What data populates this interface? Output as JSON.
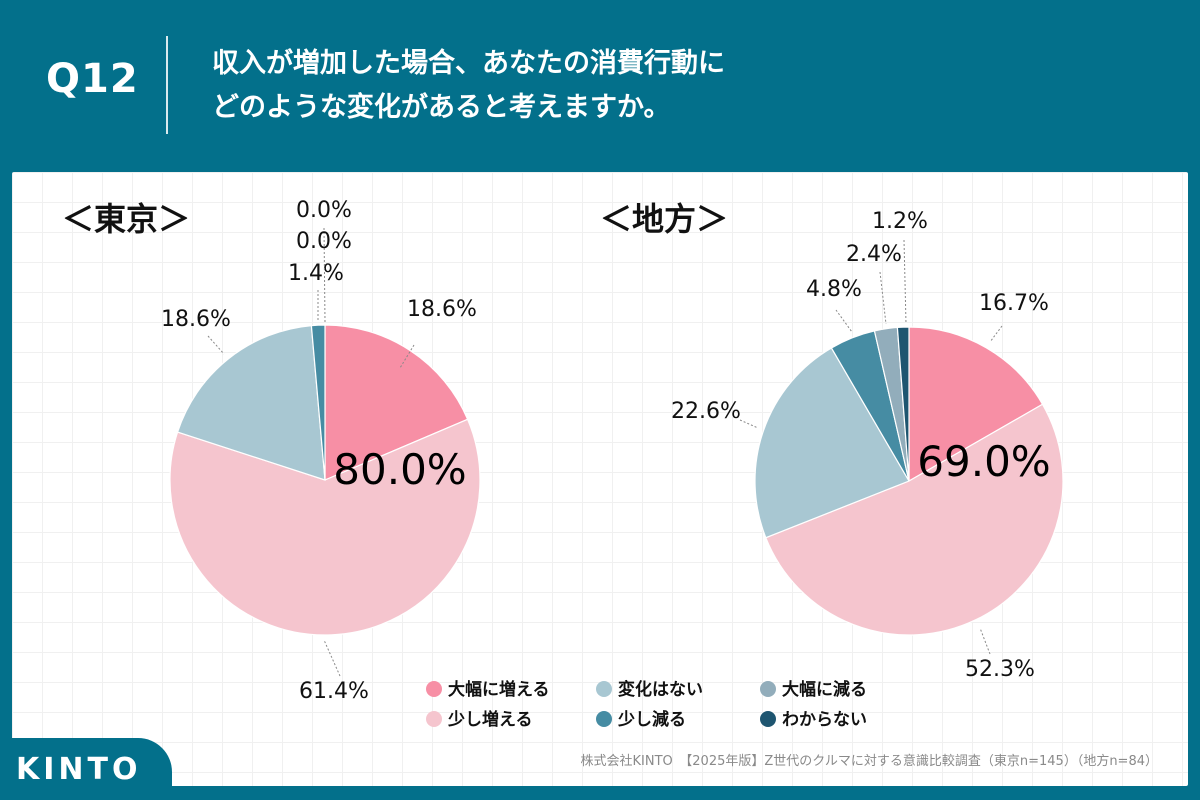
{
  "header": {
    "qnum": "Q12",
    "title_line1": "収入が増加した場合、あなたの消費行動に",
    "title_line2": "どのような変化があると考えますか。"
  },
  "chart_data": [
    {
      "type": "pie",
      "title": "＜東京＞",
      "center_label": "80.0%",
      "categories": [
        "大幅に増える",
        "少し増える",
        "変化はない",
        "少し減る",
        "大幅に減る",
        "わからない"
      ],
      "values": [
        18.6,
        61.4,
        18.6,
        1.4,
        0.0,
        0.0
      ],
      "labels": [
        "18.6%",
        "61.4%",
        "18.6%",
        "1.4%",
        "0.0%",
        "0.0%"
      ]
    },
    {
      "type": "pie",
      "title": "＜地方＞",
      "center_label": "69.0%",
      "categories": [
        "大幅に増える",
        "少し増える",
        "変化はない",
        "少し減る",
        "大幅に減る",
        "わからない"
      ],
      "values": [
        16.7,
        52.3,
        22.6,
        4.8,
        2.4,
        1.2
      ],
      "labels": [
        "16.7%",
        "52.3%",
        "22.6%",
        "4.8%",
        "2.4%",
        "1.2%"
      ]
    }
  ],
  "legend": [
    {
      "label": "大幅に増える",
      "color": "#f78fa5"
    },
    {
      "label": "変化はない",
      "color": "#a8c7d2"
    },
    {
      "label": "大幅に減る",
      "color": "#92adbb"
    },
    {
      "label": "少し増える",
      "color": "#f5c5ce"
    },
    {
      "label": "少し減る",
      "color": "#468ca3"
    },
    {
      "label": "わからない",
      "color": "#1e5570"
    }
  ],
  "colors": {
    "大幅に増える": "#f78fa5",
    "少し増える": "#f5c5ce",
    "変化はない": "#a8c7d2",
    "少し減る": "#468ca3",
    "大幅に減る": "#92adbb",
    "わからない": "#1e5570"
  },
  "footer": {
    "text": "株式会社KINTO　【2025年版】Z世代のクルマに対する意識比較調査（東京n=145）（地方n=84）"
  },
  "logo": {
    "text": "KINTO"
  }
}
